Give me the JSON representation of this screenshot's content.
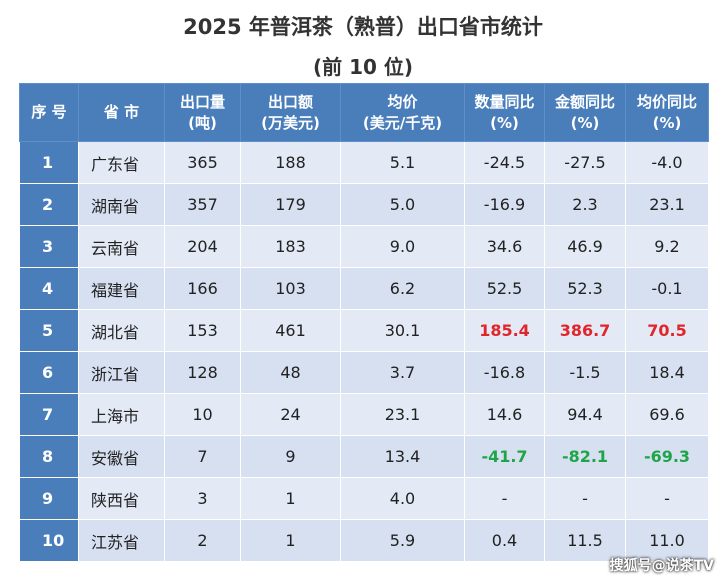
{
  "title": "2025 年普洱茶（熟普）出口省市统计",
  "subtitle": "(前 10 位)",
  "headers": [
    {
      "l1": "序 号",
      "l2": ""
    },
    {
      "l1": "省 市",
      "l2": ""
    },
    {
      "l1": "出口量",
      "l2": "(吨)"
    },
    {
      "l1": "出口额",
      "l2": "(万美元)"
    },
    {
      "l1": "均价",
      "l2": "(美元/千克)"
    },
    {
      "l1": "数量同比",
      "l2": "(%)"
    },
    {
      "l1": "金额同比",
      "l2": "(%)"
    },
    {
      "l1": "均价同比",
      "l2": "(%)"
    }
  ],
  "rows": [
    {
      "no": "1",
      "province": "广东省",
      "qty": "365",
      "amount": "188",
      "price": "5.1",
      "qty_yoy": "-24.5",
      "amount_yoy": "-27.5",
      "price_yoy": "-4.0"
    },
    {
      "no": "2",
      "province": "湖南省",
      "qty": "357",
      "amount": "179",
      "price": "5.0",
      "qty_yoy": "-16.9",
      "amount_yoy": "2.3",
      "price_yoy": "23.1"
    },
    {
      "no": "3",
      "province": "云南省",
      "qty": "204",
      "amount": "183",
      "price": "9.0",
      "qty_yoy": "34.6",
      "amount_yoy": "46.9",
      "price_yoy": "9.2"
    },
    {
      "no": "4",
      "province": "福建省",
      "qty": "166",
      "amount": "103",
      "price": "6.2",
      "qty_yoy": "52.5",
      "amount_yoy": "52.3",
      "price_yoy": "-0.1"
    },
    {
      "no": "5",
      "province": "湖北省",
      "qty": "153",
      "amount": "461",
      "price": "30.1",
      "qty_yoy": "185.4",
      "amount_yoy": "386.7",
      "price_yoy": "70.5"
    },
    {
      "no": "6",
      "province": "浙江省",
      "qty": "128",
      "amount": "48",
      "price": "3.7",
      "qty_yoy": "-16.8",
      "amount_yoy": "-1.5",
      "price_yoy": "18.4"
    },
    {
      "no": "7",
      "province": "上海市",
      "qty": "10",
      "amount": "24",
      "price": "23.1",
      "qty_yoy": "14.6",
      "amount_yoy": "94.4",
      "price_yoy": "69.6"
    },
    {
      "no": "8",
      "province": "安徽省",
      "qty": "7",
      "amount": "9",
      "price": "13.4",
      "qty_yoy": "-41.7",
      "amount_yoy": "-82.1",
      "price_yoy": "-69.3"
    },
    {
      "no": "9",
      "province": "陕西省",
      "qty": "3",
      "amount": "1",
      "price": "4.0",
      "qty_yoy": "-",
      "amount_yoy": "-",
      "price_yoy": "-"
    },
    {
      "no": "10",
      "province": "江苏省",
      "qty": "2",
      "amount": "1",
      "price": "5.9",
      "qty_yoy": "0.4",
      "amount_yoy": "11.5",
      "price_yoy": "11.0"
    }
  ],
  "watermark": "搜狐号@说茶TV",
  "colors": {
    "header": "#4a7ebb",
    "row_light": "#e3eaf6",
    "row_dark": "#d6e0f1",
    "highlight_up": "#e0262a",
    "highlight_down": "#1fa547"
  }
}
